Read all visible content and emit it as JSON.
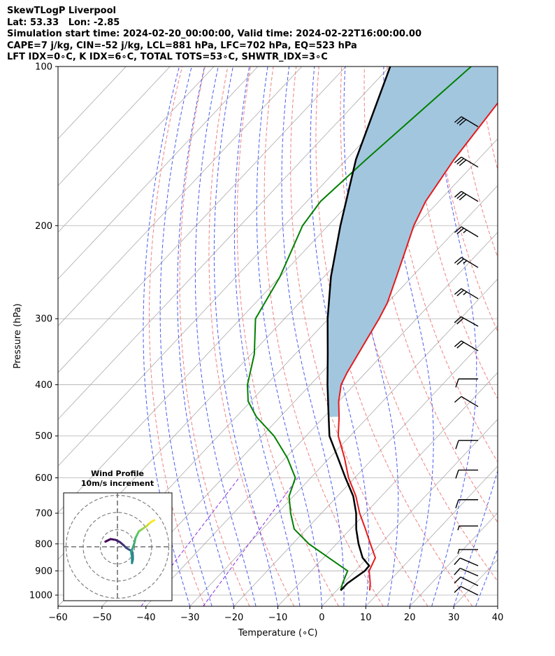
{
  "header": {
    "line1": "SkewTLogP Liverpool",
    "line2": "Lat: 53.33   Lon: -2.85",
    "line3": "Simulation start time: 2024-02-20_00:00:00, Valid time: 2024-02-22T16:00:00.00",
    "line4": "CAPE=7 j/kg, CIN=-52 j/kg, LCL=881 hPa, LFC=702 hPa, EQ=523 hPa",
    "line5": "LFT IDX=0∘C, K IDX=6∘C, TOTAL TOTS=53∘C, SHWTR_IDX=3∘C"
  },
  "chart_data": [
    {
      "type": "line",
      "subtype": "skew-t log-p",
      "xlabel": "Temperature (∘C)",
      "ylabel": "Pressure (hPa)",
      "xlim": [
        -60,
        40
      ],
      "ylim_pressure_hpa": [
        1050,
        100
      ],
      "y_scale": "log",
      "x_ticks": [
        -60,
        -50,
        -40,
        -30,
        -20,
        -10,
        0,
        10,
        20,
        30,
        40
      ],
      "x_tick_labels": [
        "−60",
        "−50",
        "−40",
        "−30",
        "−20",
        "−10",
        "0",
        "10",
        "20",
        "30",
        "40"
      ],
      "y_ticks": [
        100,
        200,
        300,
        400,
        500,
        600,
        700,
        800,
        900,
        1000
      ],
      "y_tick_labels": [
        "100",
        "200",
        "300",
        "400",
        "500",
        "600",
        "700",
        "800",
        "900",
        "1000"
      ],
      "grid": true,
      "colors": {
        "temperature": "#e41a1c",
        "dewpoint": "#008000",
        "parcel": "#000000",
        "cape_fill": "#a3c6df",
        "dry_adiabats": "#f08080",
        "moist_adiabats": "#4a5cf0",
        "mixing_ratio": "#8a2be2",
        "isotherms": "#aaaaaa",
        "wind_barbs": "#000000"
      },
      "series": [
        {
          "key": "temperature",
          "pressure": [
            100,
            150,
            180,
            200,
            220,
            250,
            280,
            300,
            350,
            380,
            400,
            430,
            460,
            500,
            550,
            600,
            650,
            700,
            750,
            800,
            850,
            900,
            950,
            980
          ],
          "temperature": [
            -69,
            -65.5,
            -63,
            -60.5,
            -57.5,
            -53.5,
            -50,
            -48.5,
            -45.7,
            -44.2,
            -43.0,
            -40.0,
            -36.6,
            -32.7,
            -26.6,
            -21.4,
            -15.8,
            -11.3,
            -6.6,
            -2.3,
            1.8,
            3.2,
            6.1,
            7.5
          ]
        },
        {
          "key": "dewpoint",
          "pressure": [
            100,
            150,
            180,
            200,
            250,
            300,
            350,
            400,
            430,
            460,
            500,
            550,
            600,
            650,
            700,
            750,
            800,
            850,
            900,
            950,
            980
          ],
          "temperature": [
            -81.5,
            -85.5,
            -86.9,
            -85.8,
            -80.0,
            -76.6,
            -69.3,
            -64.3,
            -60.6,
            -55.4,
            -47.3,
            -39.6,
            -33.5,
            -31.0,
            -27.0,
            -22.8,
            -16.3,
            -8.8,
            -1.7,
            -0.2,
            0.9
          ]
        },
        {
          "key": "parcel",
          "pressure": [
            100,
            150,
            200,
            250,
            300,
            350,
            400,
            450,
            500,
            550,
            600,
            650,
            700,
            750,
            800,
            850,
            880,
            900,
            950,
            980
          ],
          "temperature": [
            -99.9,
            -87.8,
            -77.2,
            -68.4,
            -60.2,
            -52.6,
            -46.1,
            -40.1,
            -34.7,
            -28.1,
            -22.1,
            -16.4,
            -12.1,
            -8.7,
            -5.0,
            -1.1,
            2.1,
            2.2,
            0.9,
            0.9
          ]
        }
      ],
      "wind_barbs": [
        {
          "pressure": 130,
          "u": -25,
          "v": 15
        },
        {
          "pressure": 155,
          "u": -25,
          "v": 15
        },
        {
          "pressure": 180,
          "u": -25,
          "v": 15
        },
        {
          "pressure": 210,
          "u": -20,
          "v": 12
        },
        {
          "pressure": 240,
          "u": -20,
          "v": 12
        },
        {
          "pressure": 275,
          "u": -20,
          "v": 12
        },
        {
          "pressure": 310,
          "u": -18,
          "v": 10
        },
        {
          "pressure": 345,
          "u": -17,
          "v": 10
        },
        {
          "pressure": 390,
          "u": -10,
          "v": 0
        },
        {
          "pressure": 440,
          "u": -10,
          "v": 6
        },
        {
          "pressure": 510,
          "u": -10,
          "v": 0
        },
        {
          "pressure": 580,
          "u": -10,
          "v": 0
        },
        {
          "pressure": 660,
          "u": -10,
          "v": 0
        },
        {
          "pressure": 740,
          "u": -7,
          "v": 0
        },
        {
          "pressure": 820,
          "u": -7,
          "v": 0
        },
        {
          "pressure": 880,
          "u": -7,
          "v": 3
        },
        {
          "pressure": 920,
          "u": -7,
          "v": 3
        },
        {
          "pressure": 960,
          "u": -8,
          "v": 4
        },
        {
          "pressure": 1000,
          "u": -8,
          "v": 4
        }
      ]
    },
    {
      "type": "line",
      "subtype": "hodograph",
      "title": "Wind Profile",
      "subtitle": "10m/s increment",
      "ring_increment_ms": 10,
      "grid": false,
      "colormap": [
        "#440154",
        "#3b528b",
        "#21918c",
        "#5ec962",
        "#fde725"
      ],
      "series": [
        {
          "u": [
            -7,
            -4,
            -1,
            1.5,
            3.5,
            5,
            6.5,
            7.5,
            8.5,
            9,
            9,
            8.5,
            8.5,
            8,
            9,
            10,
            10.5,
            11.5,
            12.5,
            14,
            15.5,
            17,
            18.5,
            19.5,
            21.5
          ],
          "v": [
            3,
            4.5,
            4,
            2.7,
            1,
            -0.5,
            -1.5,
            -2,
            -2.5,
            -5,
            -7.5,
            -9.5,
            -6,
            -3,
            -0.5,
            2.5,
            5,
            7,
            9,
            10,
            11,
            12,
            13.5,
            14.3,
            15.5
          ]
        }
      ]
    }
  ]
}
